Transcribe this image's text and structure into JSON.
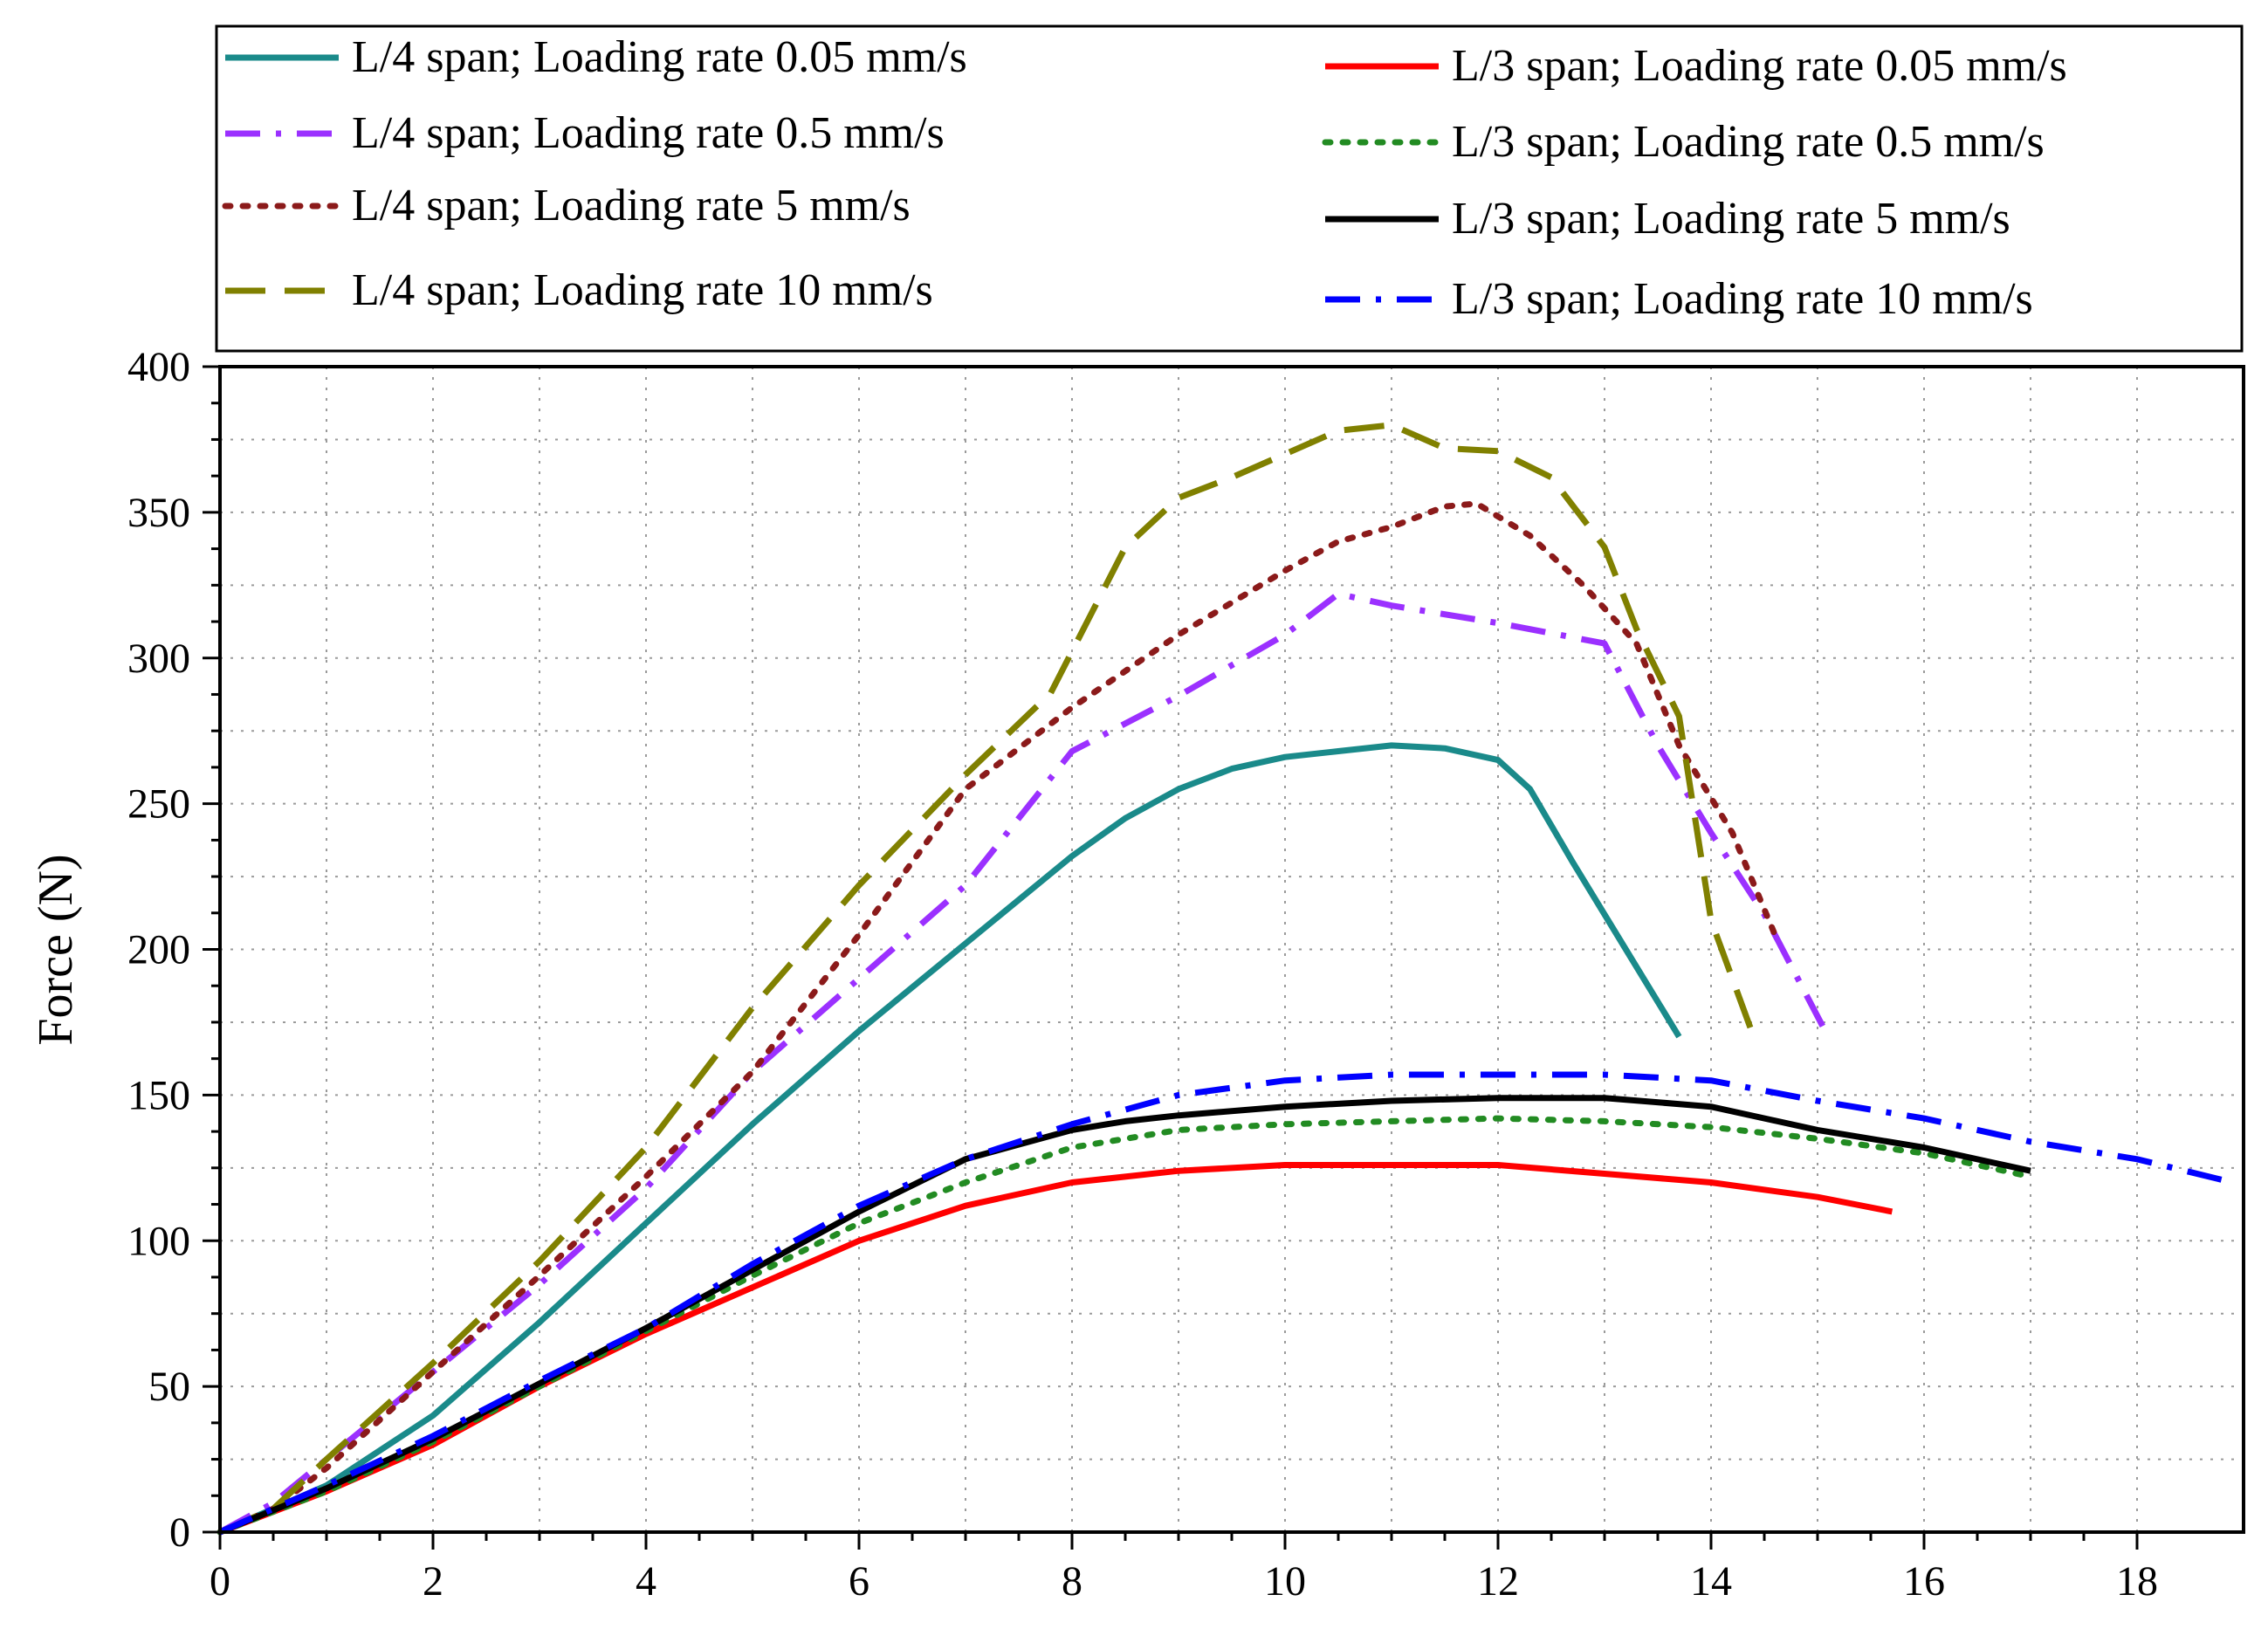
{
  "chart_data": {
    "type": "line",
    "title": "",
    "xlabel": "",
    "ylabel": "Force (N)",
    "xlim": [
      0,
      19
    ],
    "ylim": [
      0,
      400
    ],
    "x_ticks": [
      0,
      2,
      4,
      6,
      8,
      10,
      12,
      14,
      16,
      18
    ],
    "y_ticks": [
      0,
      50,
      100,
      150,
      200,
      250,
      300,
      350,
      400
    ],
    "x_tick_labels": [
      "0",
      "2",
      "4",
      "6",
      "8",
      "10",
      "12",
      "14",
      "16",
      "18"
    ],
    "y_tick_labels": [
      "0",
      "50",
      "100",
      "150",
      "200",
      "250",
      "300",
      "350",
      "400"
    ],
    "grid": true,
    "legend_position": "top",
    "series": [
      {
        "name": "L/4 span; Loading rate 0.05 mm/s",
        "color": "#1a8a8a",
        "style": "solid",
        "points": [
          [
            0,
            0
          ],
          [
            1,
            16
          ],
          [
            2,
            40
          ],
          [
            3,
            72
          ],
          [
            4,
            106
          ],
          [
            5,
            140
          ],
          [
            6,
            172
          ],
          [
            7,
            202
          ],
          [
            8,
            232
          ],
          [
            8.5,
            245
          ],
          [
            9,
            255
          ],
          [
            9.5,
            262
          ],
          [
            10,
            266
          ],
          [
            10.5,
            268
          ],
          [
            11,
            270
          ],
          [
            11.5,
            269
          ],
          [
            12,
            265
          ],
          [
            12.3,
            255
          ],
          [
            12.7,
            230
          ],
          [
            13.2,
            200
          ],
          [
            13.7,
            170
          ]
        ]
      },
      {
        "name": "L/4 span; Loading rate 0.5 mm/s",
        "color": "#9b30ff",
        "style": "dashdot",
        "points": [
          [
            0,
            0
          ],
          [
            0.5,
            10
          ],
          [
            1,
            25
          ],
          [
            2,
            55
          ],
          [
            3,
            85
          ],
          [
            4,
            118
          ],
          [
            5,
            158
          ],
          [
            6,
            190
          ],
          [
            7,
            222
          ],
          [
            8,
            268
          ],
          [
            9,
            287
          ],
          [
            10,
            308
          ],
          [
            10.5,
            322
          ],
          [
            11,
            318
          ],
          [
            12,
            312
          ],
          [
            13,
            305
          ],
          [
            13.5,
            270
          ],
          [
            14,
            240
          ],
          [
            14.5,
            212
          ],
          [
            15.1,
            170
          ]
        ]
      },
      {
        "name": "L/4 span; Loading rate 5 mm/s",
        "color": "#8b1a1a",
        "style": "dotted",
        "points": [
          [
            0,
            0
          ],
          [
            0.5,
            8
          ],
          [
            1,
            22
          ],
          [
            2,
            55
          ],
          [
            3,
            88
          ],
          [
            4,
            122
          ],
          [
            5,
            158
          ],
          [
            6,
            205
          ],
          [
            7,
            255
          ],
          [
            8,
            283
          ],
          [
            9,
            308
          ],
          [
            10,
            330
          ],
          [
            10.5,
            340
          ],
          [
            11,
            345
          ],
          [
            11.5,
            352
          ],
          [
            11.8,
            353
          ],
          [
            12.3,
            342
          ],
          [
            12.8,
            325
          ],
          [
            13.3,
            305
          ],
          [
            13.7,
            270
          ],
          [
            14.2,
            240
          ],
          [
            14.6,
            205
          ]
        ]
      },
      {
        "name": "L/4 span; Loading rate 10 mm/s",
        "color": "#808000",
        "style": "dashed",
        "points": [
          [
            0,
            0
          ],
          [
            0.5,
            8
          ],
          [
            1,
            25
          ],
          [
            2,
            58
          ],
          [
            3,
            93
          ],
          [
            4,
            132
          ],
          [
            5,
            180
          ],
          [
            6,
            222
          ],
          [
            7,
            260
          ],
          [
            7.8,
            288
          ],
          [
            8.5,
            338
          ],
          [
            9,
            355
          ],
          [
            9.5,
            362
          ],
          [
            10,
            370
          ],
          [
            10.5,
            378
          ],
          [
            11,
            380
          ],
          [
            11.5,
            372
          ],
          [
            12,
            371
          ],
          [
            12.5,
            362
          ],
          [
            13,
            338
          ],
          [
            13.3,
            310
          ],
          [
            13.7,
            280
          ],
          [
            14,
            210
          ],
          [
            14.4,
            170
          ]
        ]
      },
      {
        "name": "L/3 span; Loading rate 0.05 mm/s",
        "color": "#ff0000",
        "style": "solid",
        "points": [
          [
            0,
            0
          ],
          [
            1,
            14
          ],
          [
            2,
            30
          ],
          [
            3,
            50
          ],
          [
            4,
            68
          ],
          [
            5,
            84
          ],
          [
            6,
            100
          ],
          [
            7,
            112
          ],
          [
            8,
            120
          ],
          [
            9,
            124
          ],
          [
            10,
            126
          ],
          [
            11,
            126
          ],
          [
            12,
            126
          ],
          [
            13,
            123
          ],
          [
            14,
            120
          ],
          [
            15,
            115
          ],
          [
            15.7,
            110
          ]
        ]
      },
      {
        "name": "L/3 span; Loading rate 0.5 mm/s",
        "color": "#228b22",
        "style": "dotted",
        "points": [
          [
            0,
            0
          ],
          [
            1,
            14
          ],
          [
            2,
            31
          ],
          [
            3,
            50
          ],
          [
            4,
            69
          ],
          [
            5,
            88
          ],
          [
            6,
            106
          ],
          [
            7,
            120
          ],
          [
            8,
            132
          ],
          [
            9,
            138
          ],
          [
            10,
            140
          ],
          [
            11,
            141
          ],
          [
            12,
            142
          ],
          [
            13,
            141
          ],
          [
            14,
            139
          ],
          [
            15,
            135
          ],
          [
            16,
            130
          ],
          [
            17,
            122
          ]
        ]
      },
      {
        "name": "L/3 span; Loading rate 5 mm/s",
        "color": "#000000",
        "style": "solid",
        "points": [
          [
            0,
            0
          ],
          [
            1,
            15
          ],
          [
            2,
            32
          ],
          [
            3,
            51
          ],
          [
            4,
            70
          ],
          [
            5,
            90
          ],
          [
            6,
            110
          ],
          [
            7,
            128
          ],
          [
            8,
            138
          ],
          [
            8.5,
            141
          ],
          [
            9,
            143
          ],
          [
            10,
            146
          ],
          [
            11,
            148
          ],
          [
            12,
            149
          ],
          [
            13,
            149
          ],
          [
            14,
            146
          ],
          [
            15,
            138
          ],
          [
            16,
            132
          ],
          [
            17,
            124
          ]
        ]
      },
      {
        "name": "L/3 span; Loading rate 10 mm/s",
        "color": "#0000ff",
        "style": "dashdot",
        "points": [
          [
            0,
            0
          ],
          [
            1,
            16
          ],
          [
            2,
            33
          ],
          [
            3,
            52
          ],
          [
            4,
            70
          ],
          [
            5,
            92
          ],
          [
            6,
            112
          ],
          [
            7,
            128
          ],
          [
            8,
            140
          ],
          [
            9,
            150
          ],
          [
            10,
            155
          ],
          [
            11,
            157
          ],
          [
            12,
            157
          ],
          [
            13,
            157
          ],
          [
            14,
            155
          ],
          [
            15,
            148
          ],
          [
            16,
            142
          ],
          [
            17,
            134
          ],
          [
            18,
            128
          ],
          [
            18.9,
            120
          ]
        ]
      }
    ]
  }
}
